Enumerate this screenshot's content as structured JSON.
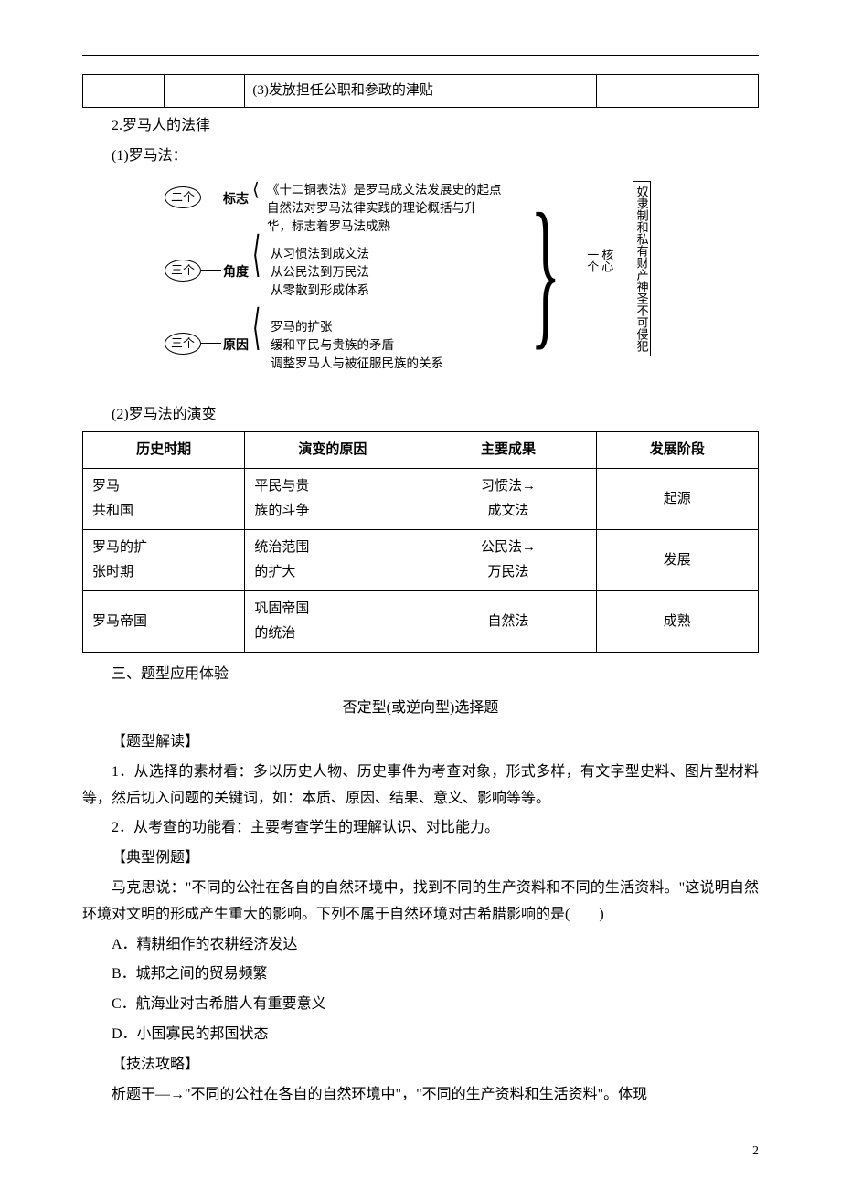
{
  "topRow": {
    "cell3": "(3)发放担任公职和参政的津贴"
  },
  "h2_num": "2.罗马人的法律",
  "h2_sub1": "(1)罗马法：",
  "diagram": {
    "oval1": "二个",
    "label1": "标志",
    "b1a": "《十二铜表法》是罗马成文法发展史的起点",
    "b1b": "自然法对罗马法律实践的理论概括与升",
    "b1c": "华，标志着罗马法成熟",
    "oval2": "三个",
    "label2": "角度",
    "b2a": "从习惯法到成文法",
    "b2b": "从公民法到万民法",
    "b2c": "从零散到形成体系",
    "oval3": "三个",
    "label3": "原因",
    "b3a": "罗马的扩张",
    "b3b": "缓和平民与贵族的矛盾",
    "b3c": "调整罗马人与被征服民族的关系",
    "core1": "一个",
    "core2": "核心",
    "vbox": "奴隶制和私有财产神圣不可侵犯"
  },
  "h2_sub2": "(2)罗马法的演变",
  "table2": {
    "headers": [
      "历史时期",
      "演变的原因",
      "主要成果",
      "发展阶段"
    ],
    "rows": [
      [
        "罗马\n共和国",
        "平民与贵\n族的斗争",
        "习惯法→\n成文法",
        "起源"
      ],
      [
        "罗马的扩\n张时期",
        "统治范围\n的扩大",
        "公民法→\n万民法",
        "发展"
      ],
      [
        "罗马帝国",
        "巩固帝国\n的统治",
        "自然法",
        "成熟"
      ]
    ],
    "colWidths": [
      "24%",
      "26%",
      "26%",
      "24%"
    ]
  },
  "sec3": "三、题型应用体验",
  "sec3_title": "否定型(或逆向型)选择题",
  "tx_header": "【题型解读】",
  "tx_p1": "1．从选择的素材看：多以历史人物、历史事件为考查对象，形式多样，有文字型史料、图片型材料等，然后切入问题的关键词，如：本质、原因、结果、意义、影响等等。",
  "tx_p2": "2．从考查的功能看：主要考查学生的理解认识、对比能力。",
  "ex_header": "【典型例题】",
  "ex_p1": "马克思说：\"不同的公社在各自的自然环境中，找到不同的生产资料和不同的生活资料。\"这说明自然环境对文明的形成产生重大的影响。下列不属于自然环境对古希腊影响的是(　　)",
  "optA": "A．精耕细作的农耕经济发达",
  "optB": "B．城邦之间的贸易频繁",
  "optC": "C．航海业对古希腊人有重要意义",
  "optD": "D．小国寡民的邦国状态",
  "tk_header": "【技法攻略】",
  "tk_p1": "析题干―→\"不同的公社在各自的自然环境中\"，\"不同的生产资料和生活资料\"。体现",
  "pageNum": "2"
}
